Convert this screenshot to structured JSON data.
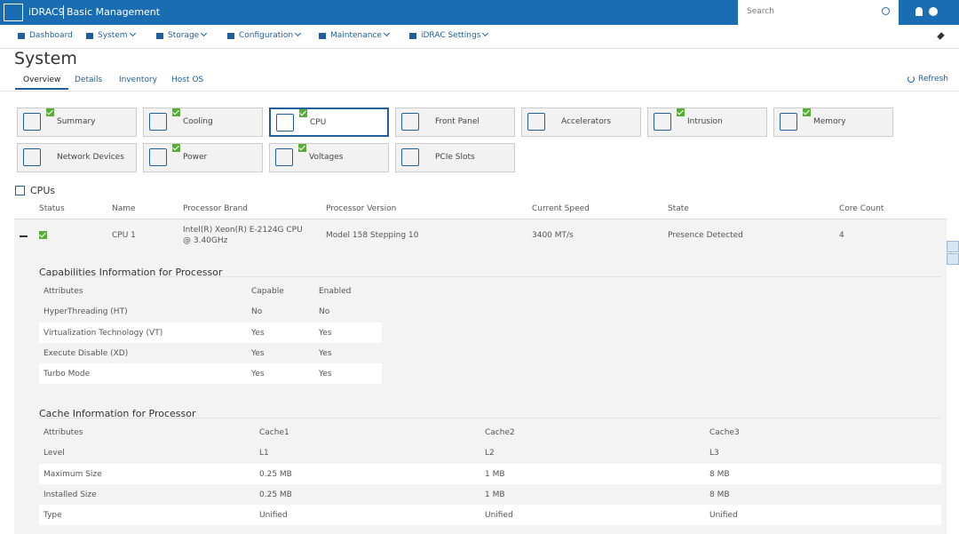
{
  "header": {
    "brand": "iDRAC9",
    "product": "Basic Management",
    "search": "Search"
  },
  "nav": [
    {
      "label": "Dashboard",
      "dropdown": false
    },
    {
      "label": "System",
      "dropdown": true
    },
    {
      "label": "Storage",
      "dropdown": true
    },
    {
      "label": "Configuration",
      "dropdown": true
    },
    {
      "label": "Maintenance",
      "dropdown": true
    },
    {
      "label": "iDRAC Settings",
      "dropdown": true
    }
  ],
  "page": {
    "title": "System",
    "tabs": [
      "Overview",
      "Details",
      "Inventory",
      "Host OS"
    ],
    "refresh": "Refresh"
  },
  "tiles": [
    {
      "label": "Summary",
      "check": true,
      "selected": false
    },
    {
      "label": "Cooling",
      "check": true,
      "selected": false
    },
    {
      "label": "CPU",
      "check": true,
      "selected": true
    },
    {
      "label": "Front Panel",
      "check": false,
      "selected": false
    },
    {
      "label": "Accelerators",
      "check": false,
      "selected": false
    },
    {
      "label": "Intrusion",
      "check": true,
      "selected": false
    },
    {
      "label": "Memory",
      "check": true,
      "selected": false
    },
    {
      "label": "Network Devices",
      "check": false,
      "selected": false
    },
    {
      "label": "Power",
      "check": true,
      "selected": false
    },
    {
      "label": "Voltages",
      "check": true,
      "selected": false
    },
    {
      "label": "PCIe Slots",
      "check": false,
      "selected": false
    }
  ],
  "cpus": {
    "title": "CPUs",
    "columns": [
      "Status",
      "Name",
      "Processor Brand",
      "Processor Version",
      "Current Speed",
      "State",
      "Core Count"
    ],
    "rows": [
      {
        "status_ok": true,
        "cells": [
          "CPU 1",
          "Intel(R) Xeon(R) E-2124G CPU @ 3.40GHz",
          "Model 158 Stepping 10",
          "3400 MT/s",
          "Presence Detected",
          "4"
        ]
      }
    ]
  },
  "capabilities": {
    "title": "Capabilities Information for Processor",
    "columns": [
      "Attributes",
      "Capable",
      "Enabled"
    ],
    "rows": [
      [
        "HyperThreading (HT)",
        "No",
        "No"
      ],
      [
        "Virtualization Technology (VT)",
        "Yes",
        "Yes"
      ],
      [
        "Execute Disable (XD)",
        "Yes",
        "Yes"
      ],
      [
        "Turbo Mode",
        "Yes",
        "Yes"
      ]
    ]
  },
  "cache": {
    "title": "Cache Information for Processor",
    "columns": [
      "Attributes",
      "Cache1",
      "Cache2",
      "Cache3"
    ],
    "rows": [
      [
        "Level",
        "L1",
        "L2",
        "L3"
      ],
      [
        "Maximum Size",
        "0.25 MB",
        "1 MB",
        "8 MB"
      ],
      [
        "Installed Size",
        "0.25 MB",
        "1 MB",
        "8 MB"
      ],
      [
        "Type",
        "Unified",
        "Unified",
        "Unified"
      ]
    ]
  }
}
